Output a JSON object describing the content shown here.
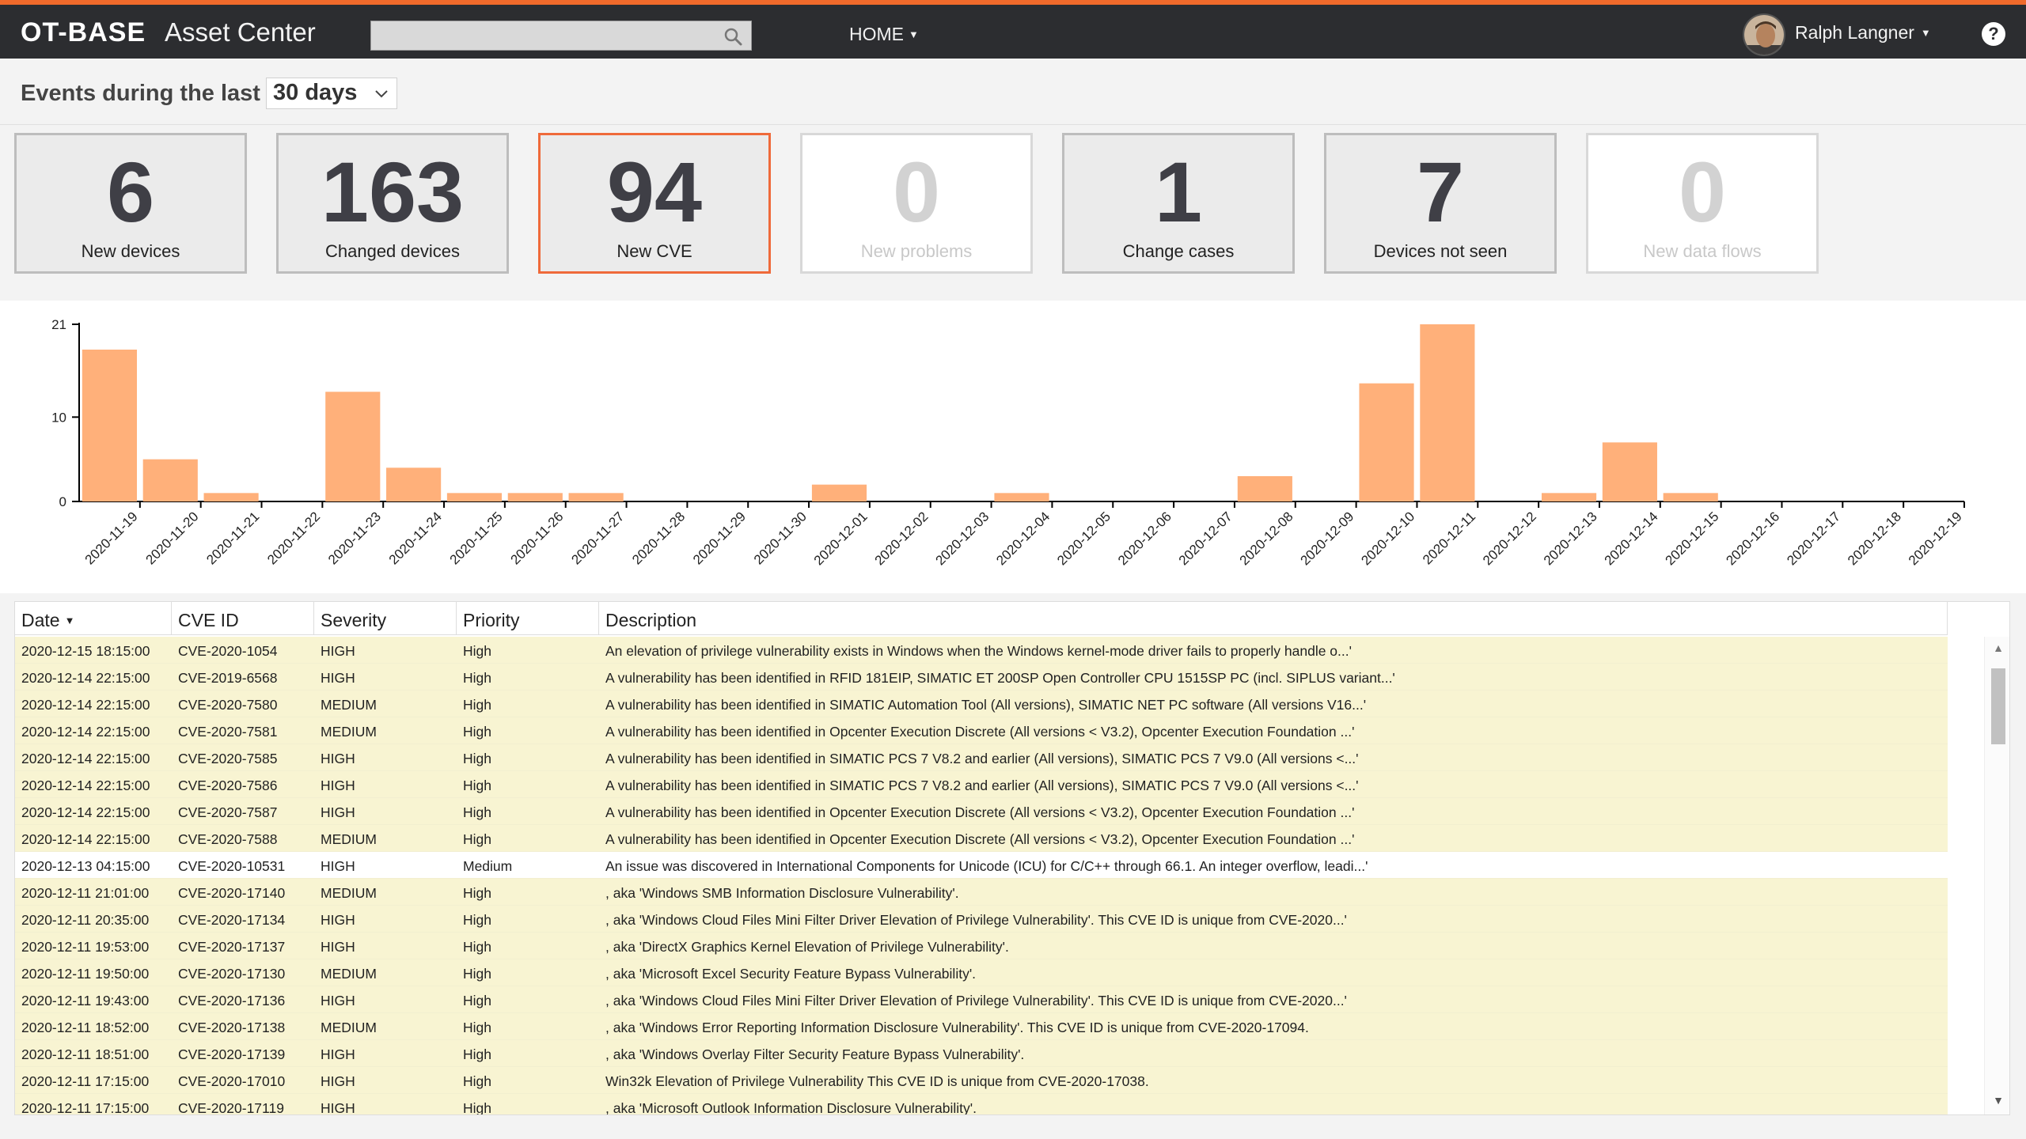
{
  "header": {
    "brand": "OT-BASE",
    "app_title": "Asset Center",
    "search_placeholder": "",
    "nav_home": "HOME",
    "user_name": "Ralph Langner",
    "help": "?"
  },
  "filter": {
    "label": "Events during the last",
    "period": "30 days"
  },
  "tiles": [
    {
      "value": "6",
      "label": "New devices",
      "state": "normal"
    },
    {
      "value": "163",
      "label": "Changed devices",
      "state": "normal"
    },
    {
      "value": "94",
      "label": "New CVE",
      "state": "active"
    },
    {
      "value": "0",
      "label": "New problems",
      "state": "empty"
    },
    {
      "value": "1",
      "label": "Change cases",
      "state": "normal"
    },
    {
      "value": "7",
      "label": "Devices not seen",
      "state": "normal"
    },
    {
      "value": "0",
      "label": "New data flows",
      "state": "empty"
    }
  ],
  "chart_data": {
    "type": "bar",
    "bar_color": "#ffb07a",
    "categories": [
      "2020-11-19",
      "2020-11-20",
      "2020-11-21",
      "2020-11-22",
      "2020-11-23",
      "2020-11-24",
      "2020-11-25",
      "2020-11-26",
      "2020-11-27",
      "2020-11-28",
      "2020-11-29",
      "2020-11-30",
      "2020-12-01",
      "2020-12-02",
      "2020-12-03",
      "2020-12-04",
      "2020-12-05",
      "2020-12-06",
      "2020-12-07",
      "2020-12-08",
      "2020-12-09",
      "2020-12-10",
      "2020-12-11",
      "2020-12-12",
      "2020-12-13",
      "2020-12-14",
      "2020-12-15",
      "2020-12-16",
      "2020-12-17",
      "2020-12-18",
      "2020-12-19"
    ],
    "values": [
      18,
      5,
      1,
      0,
      13,
      4,
      1,
      1,
      1,
      0,
      0,
      0,
      2,
      0,
      0,
      1,
      0,
      0,
      0,
      3,
      0,
      14,
      21,
      0,
      1,
      7,
      1,
      0,
      0,
      0,
      0
    ],
    "yticks": [
      0,
      10,
      21
    ],
    "ylim": [
      0,
      21
    ],
    "title": "",
    "xlabel": "",
    "ylabel": ""
  },
  "table": {
    "columns": [
      "Date",
      "CVE ID",
      "Severity",
      "Priority",
      "Description"
    ],
    "sort_column": "Date",
    "rows": [
      {
        "date": "2020-12-15 18:15:00",
        "cve": "CVE-2020-1054",
        "severity": "HIGH",
        "priority": "High",
        "desc": "An elevation of privilege vulnerability exists in Windows when the Windows kernel-mode driver fails to properly handle o...'",
        "highlight": true
      },
      {
        "date": "2020-12-14 22:15:00",
        "cve": "CVE-2019-6568",
        "severity": "HIGH",
        "priority": "High",
        "desc": "A vulnerability has been identified in RFID 181EIP, SIMATIC ET 200SP Open Controller CPU 1515SP PC (incl. SIPLUS variant...'",
        "highlight": true
      },
      {
        "date": "2020-12-14 22:15:00",
        "cve": "CVE-2020-7580",
        "severity": "MEDIUM",
        "priority": "High",
        "desc": "A vulnerability has been identified in SIMATIC Automation Tool (All versions), SIMATIC NET PC software (All versions V16...'",
        "highlight": true
      },
      {
        "date": "2020-12-14 22:15:00",
        "cve": "CVE-2020-7581",
        "severity": "MEDIUM",
        "priority": "High",
        "desc": "A vulnerability has been identified in Opcenter Execution Discrete (All versions < V3.2), Opcenter Execution Foundation ...'",
        "highlight": true
      },
      {
        "date": "2020-12-14 22:15:00",
        "cve": "CVE-2020-7585",
        "severity": "HIGH",
        "priority": "High",
        "desc": "A vulnerability has been identified in SIMATIC PCS 7 V8.2 and earlier (All versions), SIMATIC PCS 7 V9.0 (All versions <...'",
        "highlight": true
      },
      {
        "date": "2020-12-14 22:15:00",
        "cve": "CVE-2020-7586",
        "severity": "HIGH",
        "priority": "High",
        "desc": "A vulnerability has been identified in SIMATIC PCS 7 V8.2 and earlier (All versions), SIMATIC PCS 7 V9.0 (All versions <...'",
        "highlight": true
      },
      {
        "date": "2020-12-14 22:15:00",
        "cve": "CVE-2020-7587",
        "severity": "HIGH",
        "priority": "High",
        "desc": "A vulnerability has been identified in Opcenter Execution Discrete (All versions < V3.2), Opcenter Execution Foundation ...'",
        "highlight": true
      },
      {
        "date": "2020-12-14 22:15:00",
        "cve": "CVE-2020-7588",
        "severity": "MEDIUM",
        "priority": "High",
        "desc": "A vulnerability has been identified in Opcenter Execution Discrete (All versions < V3.2), Opcenter Execution Foundation ...'",
        "highlight": true
      },
      {
        "date": "2020-12-13 04:15:00",
        "cve": "CVE-2020-10531",
        "severity": "HIGH",
        "priority": "Medium",
        "desc": "An issue was discovered in International Components for Unicode (ICU) for C/C++ through 66.1. An integer overflow, leadi...'",
        "highlight": false
      },
      {
        "date": "2020-12-11 21:01:00",
        "cve": "CVE-2020-17140",
        "severity": "MEDIUM",
        "priority": "High",
        "desc": ", aka 'Windows SMB Information Disclosure Vulnerability'.",
        "highlight": true
      },
      {
        "date": "2020-12-11 20:35:00",
        "cve": "CVE-2020-17134",
        "severity": "HIGH",
        "priority": "High",
        "desc": ", aka 'Windows Cloud Files Mini Filter Driver Elevation of Privilege Vulnerability'. This CVE ID is unique from CVE-2020...'",
        "highlight": true
      },
      {
        "date": "2020-12-11 19:53:00",
        "cve": "CVE-2020-17137",
        "severity": "HIGH",
        "priority": "High",
        "desc": ", aka 'DirectX Graphics Kernel Elevation of Privilege Vulnerability'.",
        "highlight": true
      },
      {
        "date": "2020-12-11 19:50:00",
        "cve": "CVE-2020-17130",
        "severity": "MEDIUM",
        "priority": "High",
        "desc": ", aka 'Microsoft Excel Security Feature Bypass Vulnerability'.",
        "highlight": true
      },
      {
        "date": "2020-12-11 19:43:00",
        "cve": "CVE-2020-17136",
        "severity": "HIGH",
        "priority": "High",
        "desc": ", aka 'Windows Cloud Files Mini Filter Driver Elevation of Privilege Vulnerability'. This CVE ID is unique from CVE-2020...'",
        "highlight": true
      },
      {
        "date": "2020-12-11 18:52:00",
        "cve": "CVE-2020-17138",
        "severity": "MEDIUM",
        "priority": "High",
        "desc": ", aka 'Windows Error Reporting Information Disclosure Vulnerability'. This CVE ID is unique from CVE-2020-17094.",
        "highlight": true
      },
      {
        "date": "2020-12-11 18:51:00",
        "cve": "CVE-2020-17139",
        "severity": "HIGH",
        "priority": "High",
        "desc": ", aka 'Windows Overlay Filter Security Feature Bypass Vulnerability'.",
        "highlight": true
      },
      {
        "date": "2020-12-11 17:15:00",
        "cve": "CVE-2020-17010",
        "severity": "HIGH",
        "priority": "High",
        "desc": "Win32k Elevation of Privilege Vulnerability This CVE ID is unique from CVE-2020-17038.",
        "highlight": true
      },
      {
        "date": "2020-12-11 17:15:00",
        "cve": "CVE-2020-17119",
        "severity": "HIGH",
        "priority": "High",
        "desc": ", aka 'Microsoft Outlook Information Disclosure Vulnerability'.",
        "highlight": true
      }
    ]
  }
}
